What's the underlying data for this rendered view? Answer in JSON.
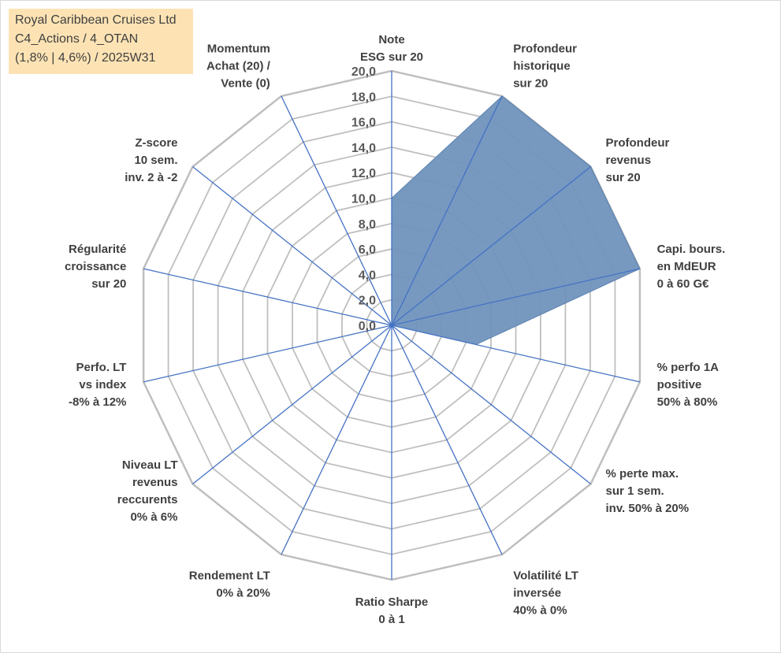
{
  "title_box": {
    "lines": [
      "Royal Caribbean Cruises Ltd",
      "C4_Actions / 4_OTAN",
      "(1,8% | 4,6%) / 2025W31"
    ]
  },
  "chart_data": {
    "type": "radar",
    "scale": {
      "min": 0,
      "max": 20,
      "step": 2
    },
    "tick_labels": [
      "0,0",
      "2,0",
      "4,0",
      "6,0",
      "8,0",
      "10,0",
      "12,0",
      "14,0",
      "16,0",
      "18,0",
      "20,0"
    ],
    "axes": [
      {
        "label": [
          "Note",
          "ESG sur 20"
        ],
        "value": 10
      },
      {
        "label": [
          "Profondeur",
          "historique",
          "sur 20"
        ],
        "value": 20
      },
      {
        "label": [
          "Profondeur",
          "revenus",
          "sur 20"
        ],
        "value": 20
      },
      {
        "label": [
          "Capi. bours.",
          "en MdEUR",
          "0 à 60 G€"
        ],
        "value": 20
      },
      {
        "label": [
          "% perfo 1A",
          "positive",
          "50% à 80%"
        ],
        "value": 6.8
      },
      {
        "label": [
          "% perte max.",
          "sur 1 sem.",
          "inv. 50% à 20%"
        ],
        "value": 0
      },
      {
        "label": [
          "Volatilité LT",
          "inversée",
          "40% à 0%"
        ],
        "value": 0
      },
      {
        "label": [
          "Ratio Sharpe",
          "0 à 1"
        ],
        "value": 0
      },
      {
        "label": [
          "Rendement LT",
          "0% à 20%"
        ],
        "value": 0
      },
      {
        "label": [
          "Niveau LT",
          "revenus",
          "reccurents",
          "0% à 6%"
        ],
        "value": 0
      },
      {
        "label": [
          "Perfo. LT",
          "vs index",
          "-8% à 12%"
        ],
        "value": 0
      },
      {
        "label": [
          "Régularité",
          "croissance",
          "sur 20"
        ],
        "value": 0
      },
      {
        "label": [
          "Z-score",
          "10 sem.",
          "inv. 2 à -2"
        ],
        "value": 0
      },
      {
        "label": [
          "Momentum",
          "Achat (20) /",
          "Vente (0)"
        ],
        "value": 0
      }
    ],
    "series_color": "#7094bd",
    "series_edge": "#5b82b0",
    "spoke_color": "#4472c4",
    "grid_color": "#bfbfbf"
  }
}
